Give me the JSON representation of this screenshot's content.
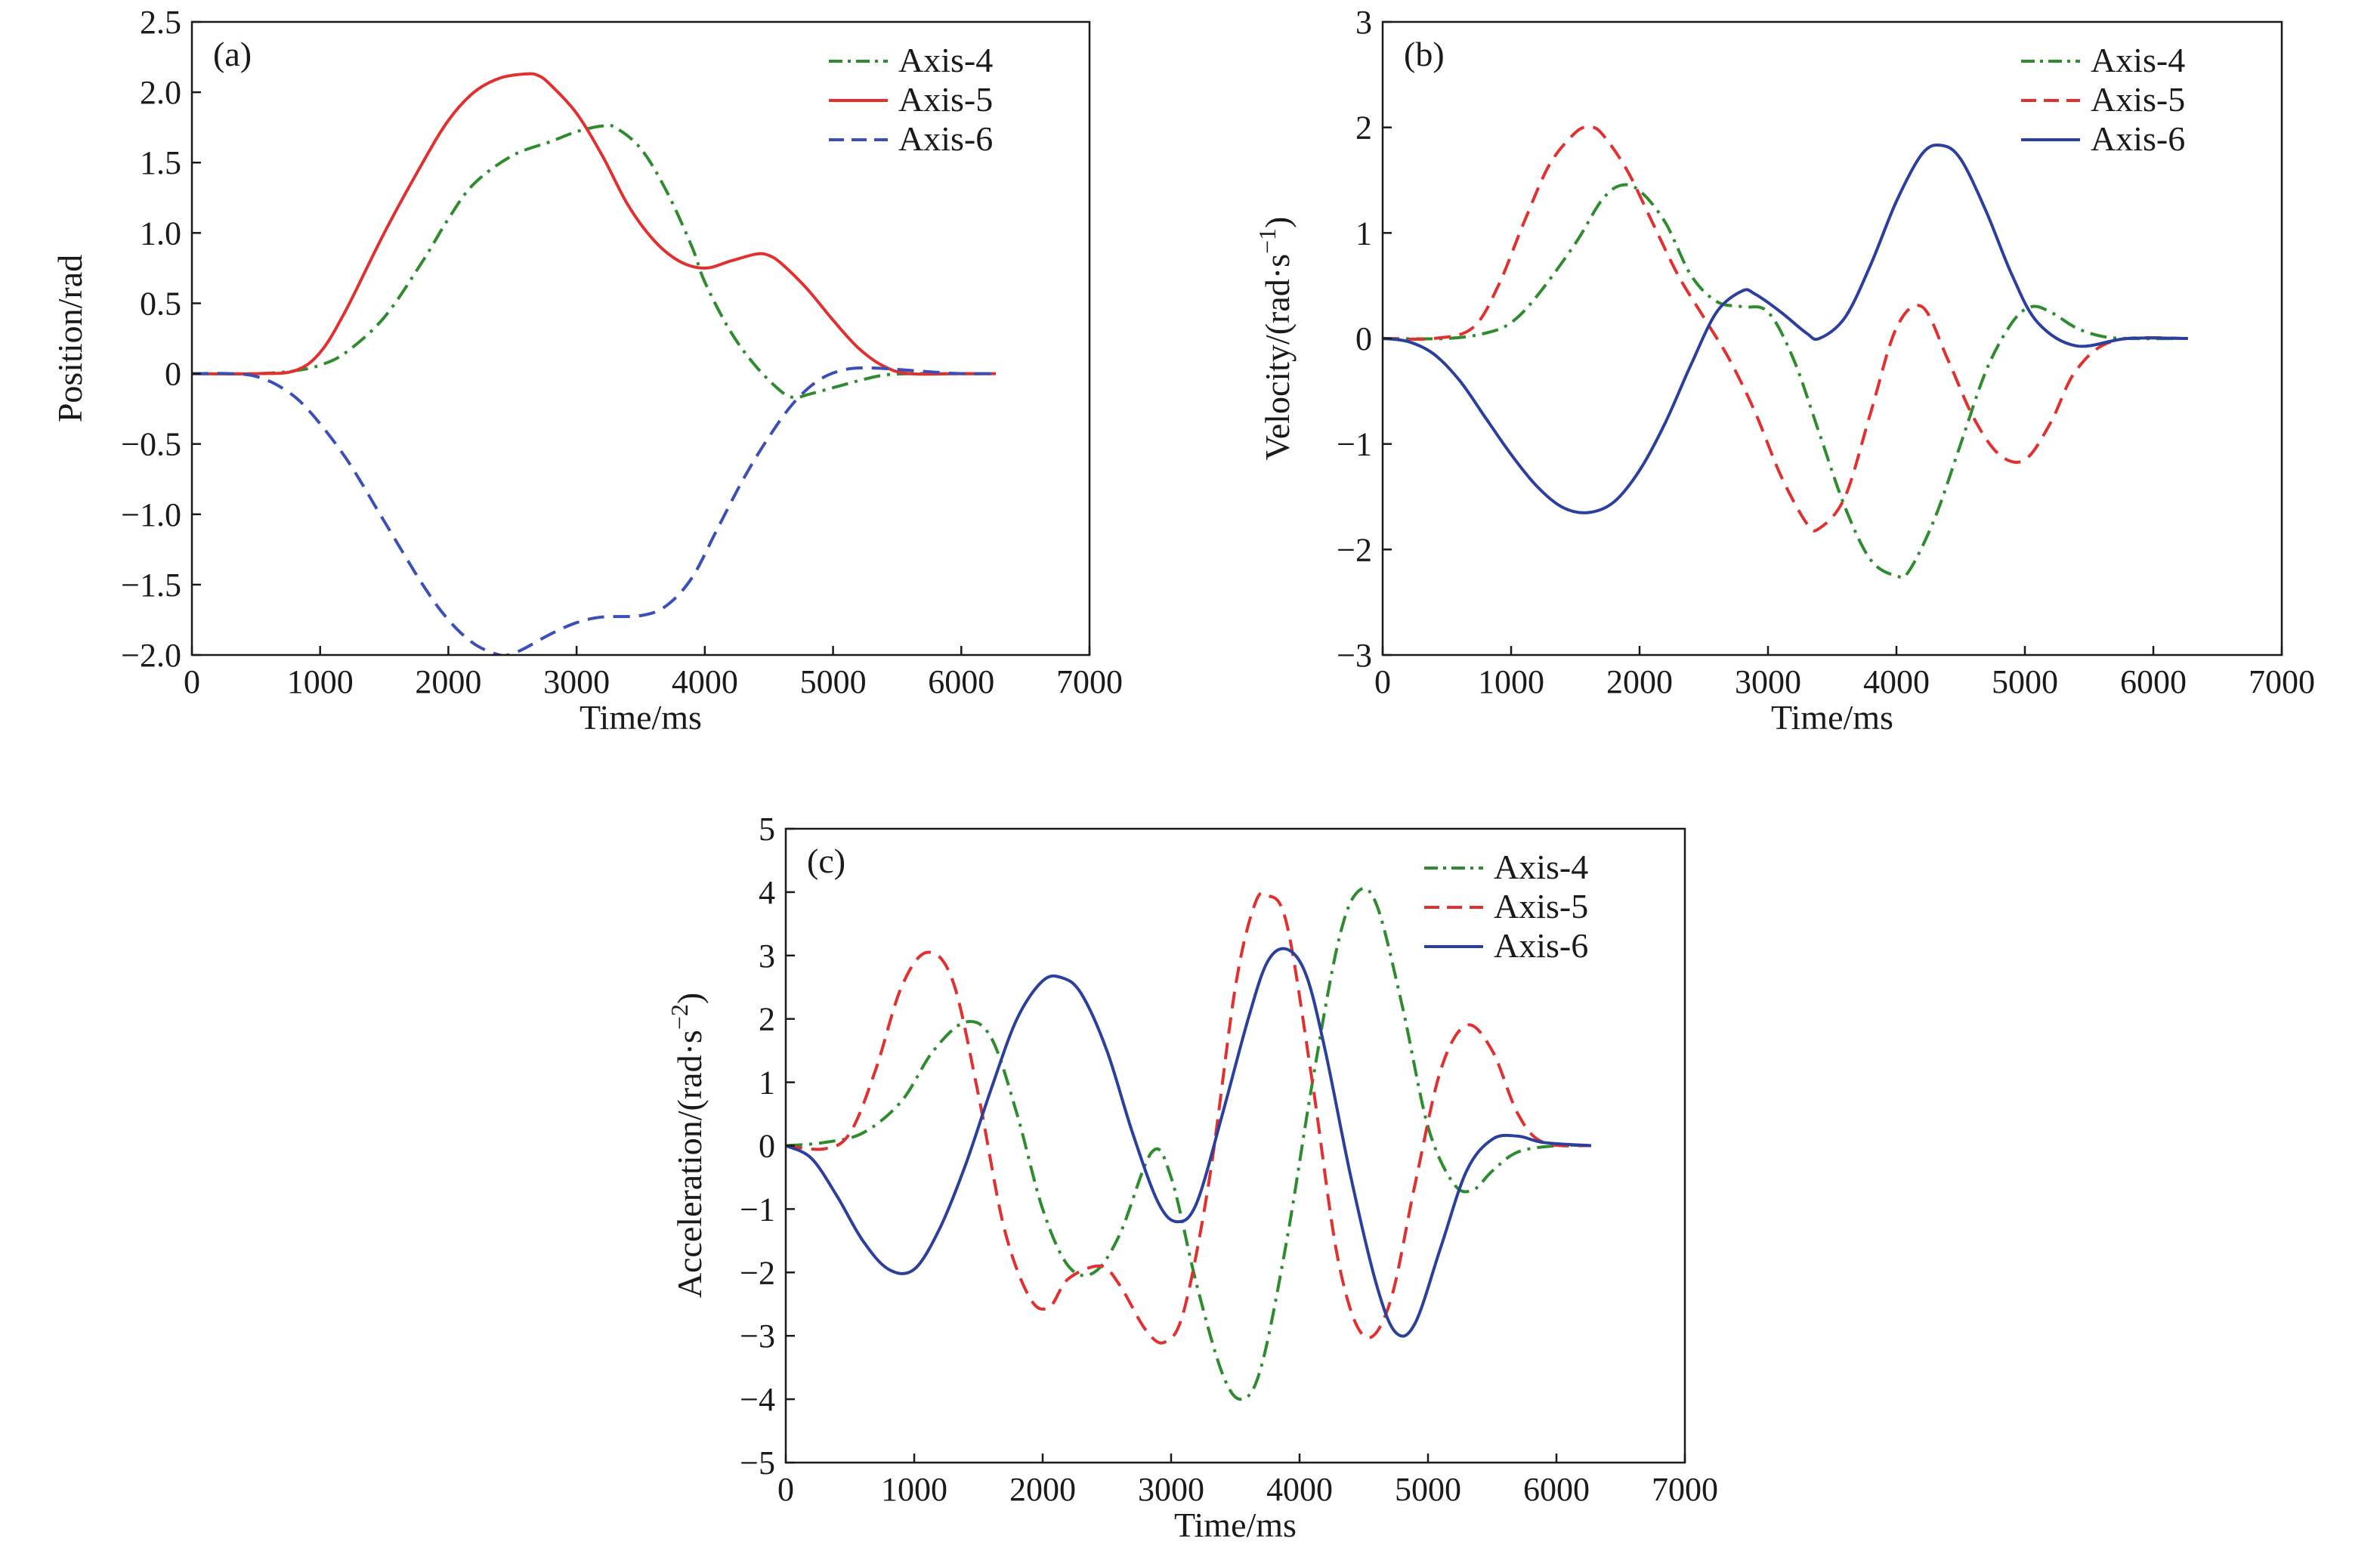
{
  "chart_data": [
    {
      "type": "line",
      "panel_label": "(a)",
      "xlabel": "Time/ms",
      "ylabel": "Position/rad",
      "xlim": [
        0,
        7000
      ],
      "ylim": [
        -2.0,
        2.5
      ],
      "x_ticks": [
        0,
        1000,
        2000,
        3000,
        4000,
        5000,
        6000,
        7000
      ],
      "y_ticks": [
        -2.0,
        -1.5,
        -1.0,
        -0.5,
        0,
        0.5,
        1.0,
        1.5,
        2.0,
        2.5
      ],
      "x_tick_labels": [
        "0",
        "1000",
        "2000",
        "3000",
        "4000",
        "5000",
        "6000",
        "7000"
      ],
      "y_tick_labels": [
        "−2.0",
        "−1.5",
        "−1.0",
        "−0.5",
        "0",
        "0.5",
        "1.0",
        "1.5",
        "2.0",
        "2.5"
      ],
      "legend_position": "top-right",
      "series": [
        {
          "name": "Axis-4",
          "color": "#2e8b2e",
          "style": "dashdot",
          "x": [
            0,
            500,
            800,
            1000,
            1200,
            1500,
            1800,
            2000,
            2200,
            2500,
            2800,
            3000,
            3200,
            3300,
            3500,
            3700,
            3900,
            4000,
            4200,
            4400,
            4600,
            4700,
            4800,
            5000,
            5200,
            5400,
            5600,
            5800,
            6000,
            6270
          ],
          "y": [
            0,
            0,
            0.02,
            0.06,
            0.15,
            0.4,
            0.8,
            1.1,
            1.35,
            1.55,
            1.65,
            1.72,
            1.76,
            1.75,
            1.6,
            1.3,
            0.9,
            0.65,
            0.3,
            0.05,
            -0.13,
            -0.17,
            -0.15,
            -0.1,
            -0.05,
            -0.01,
            0,
            0,
            0,
            0
          ]
        },
        {
          "name": "Axis-5",
          "color": "#e03030",
          "style": "solid",
          "x": [
            0,
            500,
            800,
            1000,
            1200,
            1500,
            1800,
            2000,
            2200,
            2400,
            2600,
            2700,
            2800,
            3000,
            3200,
            3400,
            3600,
            3800,
            4000,
            4200,
            4400,
            4500,
            4600,
            4800,
            5000,
            5200,
            5400,
            5600,
            6000,
            6270
          ],
          "y": [
            0,
            0,
            0.02,
            0.15,
            0.45,
            1.0,
            1.5,
            1.8,
            2.0,
            2.1,
            2.13,
            2.12,
            2.05,
            1.85,
            1.55,
            1.2,
            0.95,
            0.8,
            0.75,
            0.8,
            0.85,
            0.84,
            0.78,
            0.6,
            0.38,
            0.18,
            0.05,
            0,
            0,
            0
          ]
        },
        {
          "name": "Axis-6",
          "color": "#3a4fb8",
          "style": "dashed",
          "x": [
            0,
            300,
            500,
            700,
            900,
            1200,
            1500,
            1800,
            2000,
            2200,
            2400,
            2500,
            2600,
            2800,
            3000,
            3200,
            3500,
            3700,
            3900,
            4100,
            4300,
            4500,
            4700,
            4900,
            5100,
            5300,
            5500,
            5800,
            6000,
            6270
          ],
          "y": [
            0,
            0,
            -0.02,
            -0.1,
            -0.25,
            -0.6,
            -1.05,
            -1.5,
            -1.75,
            -1.92,
            -2.0,
            -1.99,
            -1.95,
            -1.85,
            -1.77,
            -1.73,
            -1.72,
            -1.65,
            -1.45,
            -1.1,
            -0.75,
            -0.45,
            -0.2,
            -0.04,
            0.03,
            0.04,
            0.03,
            0.01,
            0,
            0
          ]
        }
      ]
    },
    {
      "type": "line",
      "panel_label": "(b)",
      "xlabel": "Time/ms",
      "ylabel": "Velocity/(rad·s",
      "ylabel_sup": "−1",
      "ylabel_end": ")",
      "xlim": [
        0,
        7000
      ],
      "ylim": [
        -3,
        3
      ],
      "x_ticks": [
        0,
        1000,
        2000,
        3000,
        4000,
        5000,
        6000,
        7000
      ],
      "y_ticks": [
        -3,
        -2,
        -1,
        0,
        1,
        2,
        3
      ],
      "x_tick_labels": [
        "0",
        "1000",
        "2000",
        "3000",
        "4000",
        "5000",
        "6000",
        "7000"
      ],
      "y_tick_labels": [
        "−3",
        "−2",
        "−1",
        "0",
        "1",
        "2",
        "3"
      ],
      "legend_position": "top-right",
      "series": [
        {
          "name": "Axis-4",
          "color": "#2e8b2e",
          "style": "dashdot",
          "x": [
            0,
            500,
            800,
            1000,
            1200,
            1500,
            1700,
            1850,
            2000,
            2200,
            2400,
            2600,
            2800,
            3000,
            3200,
            3400,
            3600,
            3800,
            4000,
            4100,
            4300,
            4500,
            4700,
            4900,
            5050,
            5200,
            5400,
            5600,
            5800,
            6270
          ],
          "y": [
            0,
            0,
            0.05,
            0.15,
            0.4,
            0.9,
            1.3,
            1.45,
            1.4,
            1.1,
            0.6,
            0.35,
            0.3,
            0.25,
            -0.2,
            -0.9,
            -1.6,
            -2.1,
            -2.25,
            -2.2,
            -1.7,
            -1.0,
            -0.3,
            0.15,
            0.3,
            0.25,
            0.1,
            0.02,
            0,
            0
          ]
        },
        {
          "name": "Axis-5",
          "color": "#e03030",
          "style": "dashed",
          "x": [
            0,
            400,
            700,
            900,
            1100,
            1300,
            1500,
            1600,
            1700,
            1900,
            2100,
            2300,
            2500,
            2700,
            2900,
            3100,
            3300,
            3400,
            3600,
            3800,
            4000,
            4200,
            4400,
            4600,
            4800,
            5000,
            5200,
            5400,
            5700,
            6270
          ],
          "y": [
            0,
            0,
            0.1,
            0.5,
            1.1,
            1.65,
            1.95,
            2.0,
            1.95,
            1.6,
            1.1,
            0.6,
            0.2,
            -0.2,
            -0.7,
            -1.3,
            -1.75,
            -1.8,
            -1.5,
            -0.7,
            0.1,
            0.3,
            -0.2,
            -0.75,
            -1.1,
            -1.15,
            -0.8,
            -0.3,
            -0.02,
            0
          ]
        },
        {
          "name": "Axis-6",
          "color": "#2b3f9c",
          "style": "solid",
          "x": [
            0,
            200,
            400,
            600,
            800,
            1000,
            1200,
            1400,
            1600,
            1800,
            2000,
            2200,
            2400,
            2600,
            2800,
            2900,
            3100,
            3300,
            3400,
            3600,
            3800,
            4000,
            4200,
            4350,
            4500,
            4700,
            4900,
            5100,
            5400,
            5800,
            6270
          ],
          "y": [
            0,
            -0.03,
            -0.15,
            -0.4,
            -0.75,
            -1.1,
            -1.4,
            -1.6,
            -1.65,
            -1.55,
            -1.25,
            -0.8,
            -0.25,
            0.25,
            0.45,
            0.42,
            0.25,
            0.05,
            0.0,
            0.2,
            0.7,
            1.3,
            1.75,
            1.83,
            1.7,
            1.2,
            0.6,
            0.15,
            -0.07,
            0,
            0
          ]
        }
      ]
    },
    {
      "type": "line",
      "panel_label": "(c)",
      "xlabel": "Time/ms",
      "ylabel": "Acceleration/(rad·s",
      "ylabel_sup": "−2",
      "ylabel_end": ")",
      "xlim": [
        0,
        7000
      ],
      "ylim": [
        -5,
        5
      ],
      "x_ticks": [
        0,
        1000,
        2000,
        3000,
        4000,
        5000,
        6000,
        7000
      ],
      "y_ticks": [
        -5,
        -4,
        -3,
        -2,
        -1,
        0,
        1,
        2,
        3,
        4,
        5
      ],
      "x_tick_labels": [
        "0",
        "1000",
        "2000",
        "3000",
        "4000",
        "5000",
        "6000",
        "7000"
      ],
      "y_tick_labels": [
        "−5",
        "−4",
        "−3",
        "−2",
        "−1",
        "0",
        "1",
        "2",
        "3",
        "4",
        "5"
      ],
      "legend_position": "top-right",
      "series": [
        {
          "name": "Axis-4",
          "color": "#2e8b2e",
          "style": "dashdot",
          "x": [
            0,
            300,
            600,
            900,
            1150,
            1400,
            1600,
            1800,
            2000,
            2200,
            2400,
            2600,
            2850,
            3000,
            3200,
            3400,
            3550,
            3700,
            3900,
            4100,
            4300,
            4450,
            4600,
            4800,
            5000,
            5200,
            5350,
            5500,
            5700,
            6000,
            6270
          ],
          "y": [
            0,
            0.05,
            0.2,
            0.7,
            1.5,
            1.95,
            1.7,
            0.5,
            -1.0,
            -1.9,
            -2.0,
            -1.4,
            -0.1,
            -0.5,
            -2.2,
            -3.6,
            -4.0,
            -3.5,
            -1.5,
            1.0,
            3.2,
            4.0,
            3.8,
            2.2,
            0.3,
            -0.6,
            -0.7,
            -0.4,
            -0.1,
            0,
            0
          ]
        },
        {
          "name": "Axis-5",
          "color": "#e03030",
          "style": "dashed",
          "x": [
            0,
            300,
            500,
            700,
            900,
            1100,
            1300,
            1500,
            1700,
            1900,
            2050,
            2200,
            2450,
            2600,
            2800,
            2950,
            3100,
            3300,
            3500,
            3650,
            3750,
            3900,
            4100,
            4300,
            4500,
            4700,
            4900,
            5100,
            5300,
            5500,
            5700,
            5900,
            6270
          ],
          "y": [
            0,
            -0.05,
            0.2,
            1.2,
            2.5,
            3.05,
            2.6,
            0.8,
            -1.3,
            -2.4,
            -2.55,
            -2.1,
            -1.9,
            -2.2,
            -2.9,
            -3.1,
            -2.6,
            -0.5,
            2.5,
            3.8,
            3.95,
            3.5,
            1.0,
            -1.8,
            -3.0,
            -2.5,
            -0.6,
            1.2,
            1.9,
            1.5,
            0.5,
            0.05,
            0
          ]
        },
        {
          "name": "Axis-6",
          "color": "#2b3f9c",
          "style": "solid",
          "x": [
            0,
            200,
            400,
            600,
            800,
            1000,
            1200,
            1400,
            1600,
            1800,
            2000,
            2150,
            2300,
            2500,
            2700,
            2900,
            3050,
            3200,
            3400,
            3600,
            3750,
            3900,
            4050,
            4200,
            4400,
            4600,
            4750,
            4900,
            5100,
            5300,
            5500,
            5700,
            5900,
            6270
          ],
          "y": [
            0,
            -0.2,
            -0.8,
            -1.5,
            -1.95,
            -1.95,
            -1.3,
            -0.3,
            0.9,
            2.0,
            2.6,
            2.65,
            2.4,
            1.5,
            0.2,
            -0.9,
            -1.2,
            -0.9,
            0.5,
            2.0,
            2.9,
            3.1,
            2.7,
            1.5,
            -0.5,
            -2.2,
            -2.95,
            -2.8,
            -1.6,
            -0.4,
            0.1,
            0.15,
            0.05,
            0
          ]
        }
      ]
    }
  ]
}
